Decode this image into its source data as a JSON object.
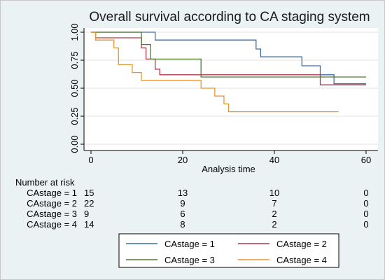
{
  "chart_data": {
    "type": "line",
    "title": "Overall survival according to CA staging system",
    "xlabel": "Analysis time",
    "ylabel": "",
    "xlim": [
      0,
      60
    ],
    "ylim": [
      0,
      1
    ],
    "x_ticks": [
      "0",
      "20",
      "40",
      "60"
    ],
    "y_ticks": [
      "0.00",
      "0.25",
      "0.50",
      "0.75",
      "1.00"
    ],
    "grid": true,
    "legend_position": "bottom-right",
    "series": [
      {
        "name": "CAstage = 1",
        "color": "#3a6fa8",
        "steps": [
          [
            0,
            1.0
          ],
          [
            14,
            0.93
          ],
          [
            36,
            0.85
          ],
          [
            37,
            0.78
          ],
          [
            46,
            0.7
          ],
          [
            50,
            0.62
          ],
          [
            53,
            0.54
          ],
          [
            60,
            0.54
          ]
        ]
      },
      {
        "name": "CAstage = 2",
        "color": "#b0374a",
        "steps": [
          [
            0,
            1.0
          ],
          [
            1,
            0.95
          ],
          [
            11,
            0.86
          ],
          [
            12,
            0.76
          ],
          [
            14,
            0.67
          ],
          [
            15,
            0.62
          ],
          [
            50,
            0.53
          ],
          [
            60,
            0.53
          ]
        ]
      },
      {
        "name": "CAstage = 3",
        "color": "#4f7a32",
        "steps": [
          [
            0,
            1.0
          ],
          [
            11,
            0.89
          ],
          [
            13,
            0.76
          ],
          [
            24,
            0.6
          ],
          [
            60,
            0.6
          ]
        ]
      },
      {
        "name": "CAstage = 4",
        "color": "#e8962e",
        "steps": [
          [
            0,
            1.0
          ],
          [
            1,
            0.93
          ],
          [
            5,
            0.86
          ],
          [
            6,
            0.71
          ],
          [
            9,
            0.64
          ],
          [
            11,
            0.57
          ],
          [
            24,
            0.5
          ],
          [
            27,
            0.43
          ],
          [
            29,
            0.36
          ],
          [
            30,
            0.29
          ],
          [
            54,
            0.29
          ]
        ]
      }
    ],
    "risk_table": {
      "title": "Number at risk",
      "times": [
        0,
        20,
        40,
        60
      ],
      "rows": [
        {
          "label": "CAstage = 1",
          "counts": [
            "15",
            "13",
            "10",
            "0"
          ]
        },
        {
          "label": "CAstage = 2",
          "counts": [
            "22",
            "9",
            "7",
            "0"
          ]
        },
        {
          "label": "CAstage = 3",
          "counts": [
            "9",
            "6",
            "2",
            "0"
          ]
        },
        {
          "label": "CAstage = 4",
          "counts": [
            "14",
            "8",
            "2",
            "0"
          ]
        }
      ]
    }
  }
}
